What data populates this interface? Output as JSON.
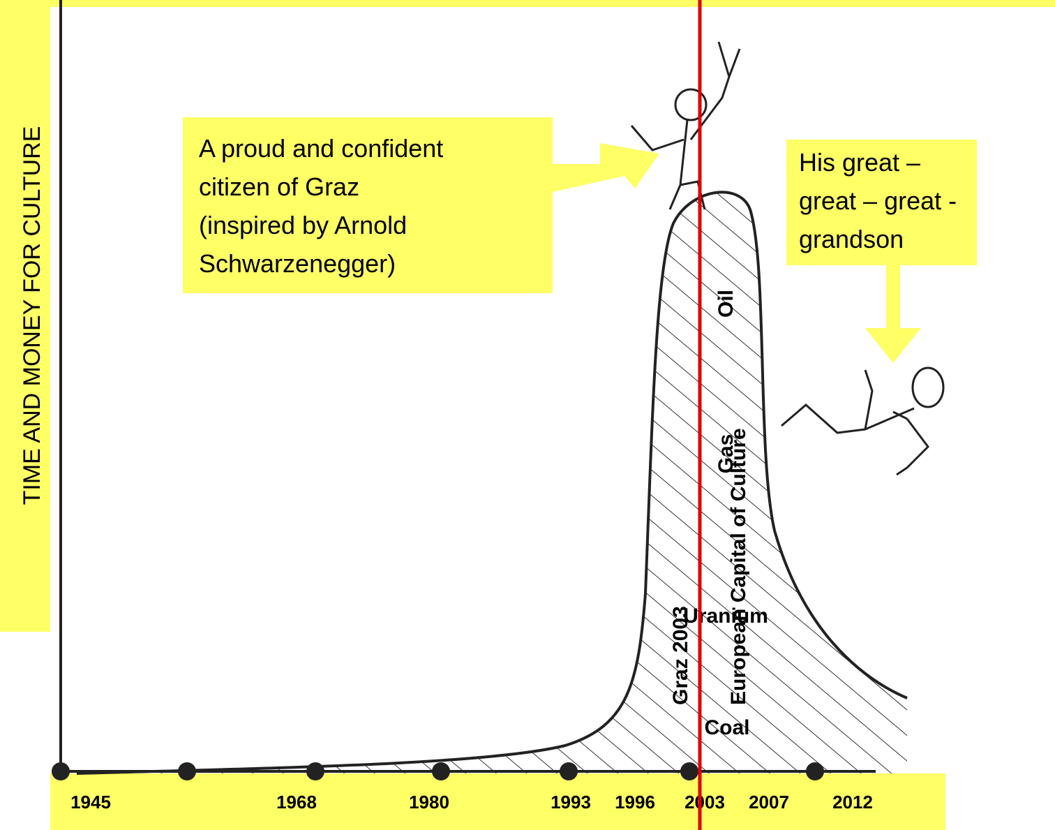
{
  "y_axis_label": "TIME AND MONEY FOR CULTURE",
  "x_labels": [
    "1945",
    "1968",
    "1980",
    "1993",
    "1996",
    "2003",
    "2007",
    "2012"
  ],
  "callouts": [
    {
      "lines": [
        "A proud and confident",
        "citizen of Graz",
        "(inspired by Arnold",
        "Schwarzenegger)"
      ]
    },
    {
      "lines": [
        "His great –",
        "great – great -",
        "grandson"
      ]
    }
  ],
  "curve_labels": {
    "oil": "Oil",
    "gas": "Gas",
    "uranium": "Uranium",
    "coal": "Coal",
    "event": "Graz 2003",
    "event_title": "European Capital of Culture"
  }
}
